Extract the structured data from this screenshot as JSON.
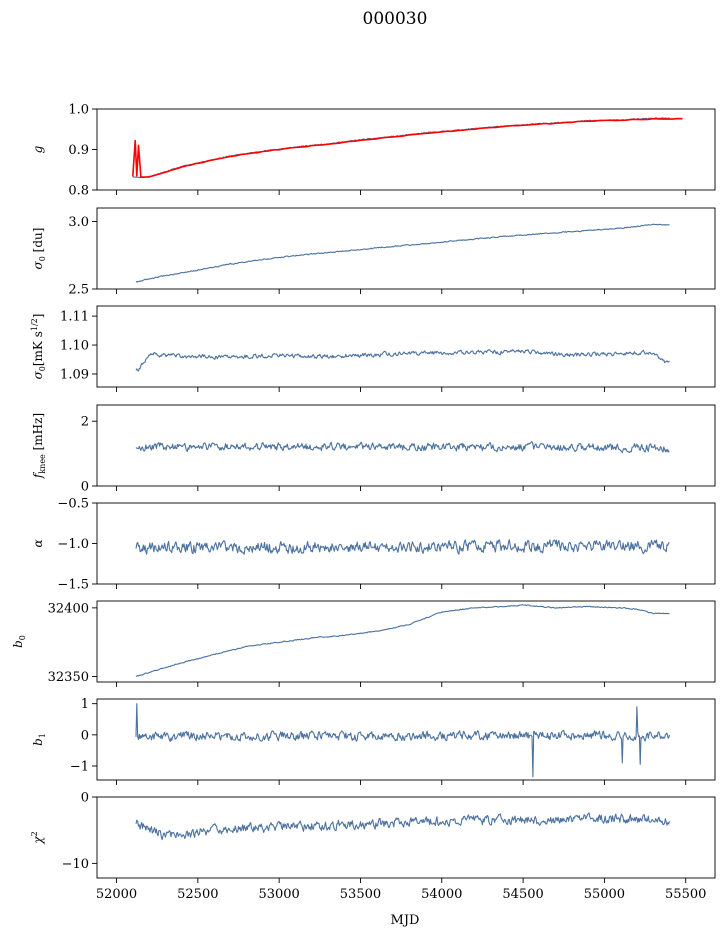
{
  "figure": {
    "title": "000030",
    "xlabel": "MJD"
  },
  "colors": {
    "series": "#4c72a0",
    "g_overlay": "#ff0000",
    "axes": "#000000"
  },
  "chart_data": [
    {
      "type": "line",
      "id": "g",
      "ylabel": "g",
      "xlim": [
        51880,
        55680
      ],
      "ylim": [
        0.8,
        1.0
      ],
      "yticks": [
        0.8,
        0.9,
        1.0
      ],
      "ytick_labels": [
        "0.8",
        "0.9",
        "1.0"
      ],
      "series": [
        {
          "color": "#4c72a0",
          "x": [
            52100,
            52150,
            52200,
            52300,
            52400,
            52500,
            52700,
            52900,
            53100,
            53300,
            53500,
            53700,
            53900,
            54100,
            54300,
            54500,
            54700,
            54900,
            55100,
            55300,
            55400
          ],
          "y": [
            0.832,
            0.831,
            0.833,
            0.845,
            0.858,
            0.867,
            0.884,
            0.896,
            0.906,
            0.914,
            0.924,
            0.932,
            0.941,
            0.948,
            0.955,
            0.961,
            0.966,
            0.971,
            0.973,
            0.977,
            0.977
          ]
        },
        {
          "color": "#ff0000",
          "x": [
            52100,
            52115,
            52125,
            52135,
            52150,
            52200,
            52300,
            52400,
            52500,
            52700,
            52900,
            53100,
            53300,
            53500,
            53700,
            53900,
            54100,
            54300,
            54500,
            54700,
            54900,
            55100,
            55300,
            55480
          ],
          "y": [
            0.833,
            0.922,
            0.835,
            0.91,
            0.832,
            0.832,
            0.844,
            0.857,
            0.866,
            0.883,
            0.895,
            0.905,
            0.913,
            0.923,
            0.931,
            0.94,
            0.947,
            0.954,
            0.96,
            0.965,
            0.97,
            0.972,
            0.976,
            0.976
          ]
        }
      ]
    },
    {
      "type": "line",
      "id": "sigma0_du",
      "ylabel": "σ0 [du]",
      "xlim": [
        51880,
        55680
      ],
      "ylim": [
        2.5,
        3.1
      ],
      "yticks": [
        2.5,
        3.0
      ],
      "ytick_labels": [
        "2.5",
        "3.0"
      ],
      "series": [
        {
          "color": "#4c72a0",
          "trend_x": [
            52120,
            52300,
            52500,
            52700,
            53000,
            53300,
            53600,
            53900,
            54200,
            54500,
            54800,
            55100,
            55300,
            55400
          ],
          "trend_y": [
            2.552,
            2.6,
            2.64,
            2.685,
            2.735,
            2.77,
            2.805,
            2.835,
            2.87,
            2.9,
            2.925,
            2.95,
            2.98,
            2.975
          ],
          "noise": 0.004
        }
      ]
    },
    {
      "type": "line",
      "id": "sigma0_mk",
      "ylabel": "σ0[mK s^1/2]",
      "xlim": [
        51880,
        55680
      ],
      "ylim": [
        1.0855,
        1.1135
      ],
      "yticks": [
        1.09,
        1.1,
        1.11
      ],
      "ytick_labels": [
        "1.09",
        "1.10",
        "1.11"
      ],
      "series": [
        {
          "color": "#4c72a0",
          "trend_x": [
            52120,
            52140,
            52200,
            52400,
            52700,
            53000,
            53300,
            53600,
            53900,
            54200,
            54500,
            54800,
            55100,
            55300,
            55380,
            55400
          ],
          "trend_y": [
            1.0915,
            1.0915,
            1.097,
            1.096,
            1.0958,
            1.0965,
            1.096,
            1.0968,
            1.0972,
            1.0975,
            1.0978,
            1.0965,
            1.0972,
            1.0975,
            1.0935,
            1.095
          ],
          "noise": 0.0007
        }
      ]
    },
    {
      "type": "line",
      "id": "fknee",
      "ylabel": "f_knee [mHz]",
      "xlim": [
        51880,
        55680
      ],
      "ylim": [
        0,
        2.5
      ],
      "yticks": [
        0,
        2
      ],
      "ytick_labels": [
        "0",
        "2"
      ],
      "series": [
        {
          "color": "#4c72a0",
          "trend_x": [
            52120,
            55400
          ],
          "trend_y": [
            1.22,
            1.18
          ],
          "noise": 0.12
        }
      ]
    },
    {
      "type": "line",
      "id": "alpha",
      "ylabel": "α",
      "xlim": [
        51880,
        55680
      ],
      "ylim": [
        -1.5,
        -0.5
      ],
      "yticks": [
        -1.5,
        -1.0,
        -0.5
      ],
      "ytick_labels": [
        "−1.5",
        "−1.0",
        "−0.5"
      ],
      "series": [
        {
          "color": "#4c72a0",
          "trend_x": [
            52120,
            55400
          ],
          "trend_y": [
            -1.05,
            -1.03
          ],
          "noise": 0.07
        }
      ]
    },
    {
      "type": "line",
      "id": "b0",
      "ylabel": "b0",
      "xlim": [
        51880,
        55680
      ],
      "ylim": [
        32346,
        32405
      ],
      "yticks": [
        32350,
        32400
      ],
      "ytick_labels": [
        "32350",
        "32400"
      ],
      "series": [
        {
          "color": "#4c72a0",
          "trend_x": [
            52120,
            52200,
            52400,
            52600,
            52800,
            53000,
            53200,
            53400,
            53600,
            53800,
            54000,
            54200,
            54400,
            54500,
            54700,
            54900,
            55100,
            55200,
            55300,
            55400
          ],
          "trend_y": [
            32350,
            32353,
            32360,
            32366,
            32372,
            32375,
            32378,
            32380,
            32383,
            32388,
            32397,
            32400,
            32401,
            32402,
            32400,
            32401,
            32400,
            32399,
            32396,
            32396
          ],
          "noise": 0.35
        }
      ]
    },
    {
      "type": "line",
      "id": "b1",
      "ylabel": "b1",
      "xlim": [
        51880,
        55680
      ],
      "ylim": [
        -1.45,
        1.15
      ],
      "yticks": [
        -1,
        0,
        1
      ],
      "ytick_labels": [
        "−1",
        "0",
        "1"
      ],
      "series": [
        {
          "color": "#4c72a0",
          "trend_x": [
            52120,
            55400
          ],
          "trend_y": [
            -0.05,
            -0.02
          ],
          "noise": 0.14,
          "spikes": [
            [
              52125,
              1.0
            ],
            [
              54560,
              -1.35
            ],
            [
              55110,
              -0.9
            ],
            [
              55220,
              -0.95
            ],
            [
              55200,
              0.9
            ]
          ]
        }
      ]
    },
    {
      "type": "line",
      "id": "chi2",
      "ylabel": "χ²",
      "xlim": [
        51880,
        55680
      ],
      "ylim": [
        -12.2,
        0
      ],
      "yticks": [
        -10,
        0
      ],
      "ytick_labels": [
        "−10",
        "0"
      ],
      "series": [
        {
          "color": "#4c72a0",
          "trend_x": [
            52120,
            52300,
            52600,
            53000,
            53400,
            53800,
            54200,
            54600,
            55000,
            55400
          ],
          "trend_y": [
            -4.0,
            -6.0,
            -5.0,
            -4.5,
            -4.2,
            -3.8,
            -3.5,
            -3.5,
            -3.2,
            -3.5
          ],
          "noise": 0.7
        }
      ]
    }
  ],
  "x_axis": {
    "ticks": [
      52000,
      52500,
      53000,
      53500,
      54000,
      54500,
      55000,
      55500
    ],
    "tick_labels": [
      "52000",
      "52500",
      "53000",
      "53500",
      "54000",
      "54500",
      "55000",
      "55500"
    ]
  }
}
